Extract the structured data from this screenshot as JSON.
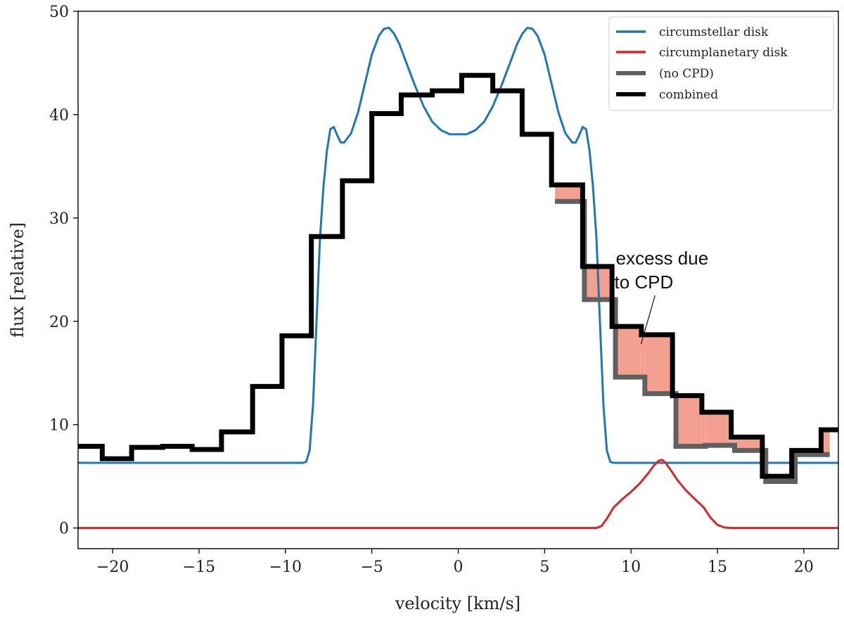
{
  "chart_data": {
    "type": "line",
    "xlabel": "velocity [km/s]",
    "ylabel": "flux [relative]",
    "xlim": [
      -22,
      22
    ],
    "ylim": [
      -2,
      50
    ],
    "xticks": [
      -20,
      -15,
      -10,
      -5,
      0,
      5,
      10,
      15,
      20
    ],
    "xtick_labels": [
      "−20",
      "−15",
      "−10",
      "−5",
      "0",
      "5",
      "10",
      "15",
      "20"
    ],
    "yticks": [
      0,
      10,
      20,
      30,
      40,
      50
    ],
    "ytick_labels": [
      "0",
      "10",
      "20",
      "30",
      "40",
      "50"
    ],
    "grid": false,
    "legend_position": "top-right",
    "series": [
      {
        "name": "circumstellar disk",
        "color": "#1f77b4",
        "style": "line",
        "x": [
          -22,
          -9,
          -8.8,
          -8.6,
          -8.4,
          -8.2,
          -8.0,
          -7.8,
          -7.6,
          -7.4,
          -7.2,
          -7.0,
          -6.8,
          -6.6,
          -6.2,
          -5.8,
          -5.4,
          -5.0,
          -4.6,
          -4.3,
          -4.0,
          -3.7,
          -3.4,
          -3.0,
          -2.5,
          -2.0,
          -1.5,
          -1.0,
          -0.5,
          0.0,
          0.5,
          1.0,
          1.5,
          2.0,
          2.5,
          3.0,
          3.4,
          3.7,
          4.0,
          4.3,
          4.6,
          5.0,
          5.4,
          5.8,
          6.2,
          6.6,
          6.8,
          7.0,
          7.2,
          7.4,
          7.6,
          7.8,
          8.0,
          8.2,
          8.4,
          8.6,
          8.8,
          9.0,
          22
        ],
        "y": [
          6.3,
          6.3,
          6.4,
          7.5,
          12,
          20,
          28,
          33,
          36.5,
          38.6,
          38.8,
          38.0,
          37.3,
          37.3,
          38.2,
          40.2,
          43,
          45.8,
          47.6,
          48.3,
          48.4,
          47.8,
          46.8,
          45,
          42.8,
          40.8,
          39.3,
          38.5,
          38.1,
          38.1,
          38.1,
          38.5,
          39.3,
          40.8,
          42.8,
          45,
          46.8,
          47.8,
          48.4,
          48.3,
          47.6,
          45.8,
          43,
          40.2,
          38.2,
          37.3,
          37.3,
          38.0,
          38.8,
          38.6,
          36.5,
          33,
          28,
          20,
          12,
          7.5,
          6.4,
          6.3,
          6.3
        ]
      },
      {
        "name": "circumplanetary disk",
        "color": "#d62728",
        "style": "line",
        "x": [
          -22,
          8.0,
          8.3,
          8.6,
          9.0,
          9.5,
          10.0,
          10.5,
          11.0,
          11.3,
          11.6,
          11.8,
          12.0,
          12.3,
          12.7,
          13.2,
          13.7,
          14.2,
          14.6,
          15.0,
          15.4,
          15.8,
          22
        ],
        "y": [
          0,
          0,
          0.2,
          0.9,
          2.0,
          2.8,
          3.5,
          4.3,
          5.3,
          6.0,
          6.5,
          6.6,
          6.3,
          5.6,
          4.6,
          3.6,
          2.8,
          2.0,
          1.0,
          0.3,
          0.05,
          0,
          0
        ]
      },
      {
        "name": "(no CPD)",
        "color": "#606060",
        "style": "steps",
        "edges": [
          5.6,
          7.3,
          9.1,
          10.8,
          12.6,
          14.3,
          16.0,
          17.8,
          19.5,
          21.5
        ],
        "values": [
          31.6,
          22.1,
          14.6,
          13.0,
          7.9,
          8.0,
          7.5,
          4.5,
          7.1
        ]
      },
      {
        "name": "combined",
        "color": "#000000",
        "style": "steps",
        "edges": [
          -22,
          -20.6,
          -18.9,
          -17.1,
          -15.4,
          -13.7,
          -11.9,
          -10.2,
          -8.5,
          -6.7,
          -5.0,
          -3.3,
          -1.5,
          0.2,
          2.0,
          3.7,
          5.4,
          7.2,
          8.9,
          10.6,
          12.4,
          14.1,
          15.8,
          17.6,
          19.3,
          21.0,
          22
        ],
        "values": [
          7.9,
          6.7,
          7.8,
          7.9,
          7.6,
          9.3,
          13.7,
          18.6,
          28.2,
          33.6,
          40.1,
          41.9,
          42.3,
          43.8,
          42.3,
          38.1,
          33.2,
          25.3,
          19.5,
          18.7,
          12.8,
          11.2,
          8.8,
          5.0,
          7.5,
          9.5
        ]
      }
    ],
    "shaded_region": {
      "label": "excess due to CPD",
      "color": "#f4a090"
    },
    "annotation": {
      "lines": [
        "excess due",
        "to CPD"
      ],
      "x": 11.8,
      "y": 25.5,
      "arrow_to": [
        10.5,
        17.8
      ]
    }
  }
}
